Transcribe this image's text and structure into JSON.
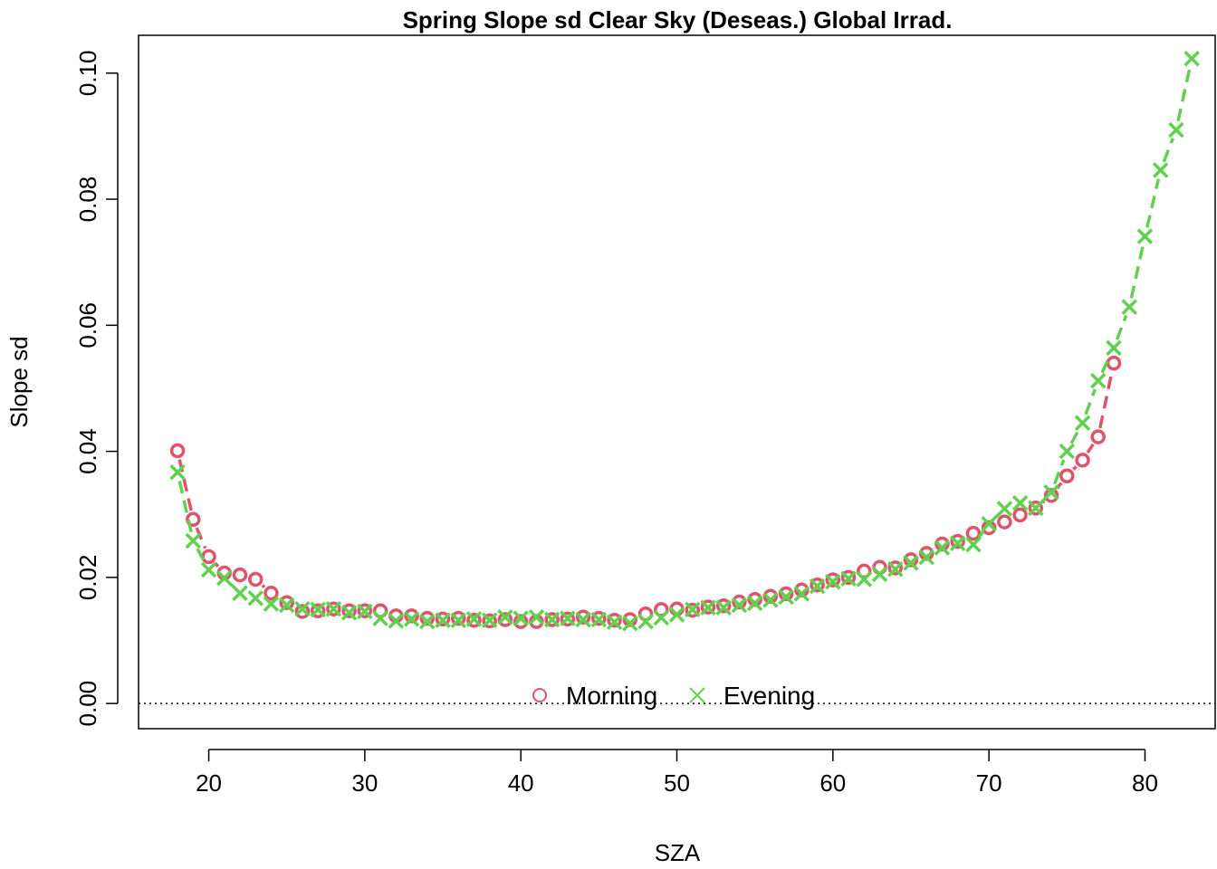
{
  "chart_data": {
    "type": "line",
    "title": "Spring Slope sd Clear Sky (Deseas.) Global Irrad.",
    "xlabel": "SZA",
    "ylabel": "Slope sd",
    "xlim": [
      15.5,
      84.5
    ],
    "ylim": [
      -0.004,
      0.106
    ],
    "xticks": [
      20,
      30,
      40,
      50,
      60,
      70,
      80
    ],
    "xtick_labels": [
      "20",
      "30",
      "40",
      "50",
      "60",
      "70",
      "80"
    ],
    "yticks": [
      0.0,
      0.02,
      0.04,
      0.06,
      0.08,
      0.1
    ],
    "ytick_labels": [
      "0.00",
      "0.02",
      "0.04",
      "0.06",
      "0.08",
      "0.10"
    ],
    "reference_line": {
      "y": 0,
      "style": "dotted"
    },
    "legend_position": "bottom-center",
    "series": [
      {
        "name": "Morning",
        "marker": "circle",
        "line": "dashed",
        "color": "#DF536B",
        "x": [
          18,
          19,
          20,
          21,
          22,
          23,
          24,
          25,
          26,
          27,
          28,
          29,
          30,
          31,
          32,
          33,
          34,
          35,
          36,
          37,
          38,
          39,
          40,
          41,
          42,
          43,
          44,
          45,
          46,
          47,
          48,
          49,
          50,
          51,
          52,
          53,
          54,
          55,
          56,
          57,
          58,
          59,
          60,
          61,
          62,
          63,
          64,
          65,
          66,
          67,
          68,
          69,
          70,
          71,
          72,
          73,
          74,
          75,
          76,
          77,
          78
        ],
        "y": [
          0.0401,
          0.0292,
          0.0233,
          0.0207,
          0.0204,
          0.0197,
          0.0175,
          0.016,
          0.0146,
          0.0147,
          0.015,
          0.0147,
          0.0147,
          0.0147,
          0.0139,
          0.0139,
          0.0135,
          0.0134,
          0.0135,
          0.0132,
          0.0131,
          0.0133,
          0.013,
          0.013,
          0.0133,
          0.0134,
          0.0137,
          0.0135,
          0.0132,
          0.0133,
          0.0142,
          0.0149,
          0.015,
          0.0148,
          0.0153,
          0.0155,
          0.0161,
          0.0165,
          0.017,
          0.0174,
          0.018,
          0.0188,
          0.0196,
          0.02,
          0.021,
          0.0216,
          0.0215,
          0.0228,
          0.0238,
          0.0253,
          0.0257,
          0.027,
          0.0279,
          0.0288,
          0.0299,
          0.031,
          0.033,
          0.0361,
          0.0386,
          0.0423,
          0.054
        ]
      },
      {
        "name": "Evening",
        "marker": "x",
        "line": "dashed",
        "color": "#61D04F",
        "x": [
          18,
          19,
          20,
          21,
          22,
          23,
          24,
          25,
          26,
          27,
          28,
          29,
          30,
          31,
          32,
          33,
          34,
          35,
          36,
          37,
          38,
          39,
          40,
          41,
          42,
          43,
          44,
          45,
          46,
          47,
          48,
          49,
          50,
          51,
          52,
          53,
          54,
          55,
          56,
          57,
          58,
          59,
          60,
          61,
          62,
          63,
          64,
          65,
          66,
          67,
          68,
          69,
          70,
          71,
          72,
          73,
          74,
          75,
          76,
          77,
          78,
          79,
          80,
          81,
          82,
          83
        ],
        "y": [
          0.0367,
          0.0258,
          0.0212,
          0.0199,
          0.0175,
          0.0167,
          0.0158,
          0.0156,
          0.015,
          0.0149,
          0.015,
          0.0144,
          0.0146,
          0.0135,
          0.0131,
          0.0134,
          0.013,
          0.0132,
          0.0132,
          0.0134,
          0.0132,
          0.0137,
          0.0135,
          0.0137,
          0.0133,
          0.0135,
          0.0133,
          0.0133,
          0.0129,
          0.0127,
          0.013,
          0.0136,
          0.0141,
          0.0149,
          0.0152,
          0.0152,
          0.0156,
          0.0159,
          0.0164,
          0.0169,
          0.0174,
          0.0186,
          0.0193,
          0.0198,
          0.0197,
          0.0205,
          0.0213,
          0.0223,
          0.0232,
          0.0247,
          0.0254,
          0.0252,
          0.0285,
          0.0309,
          0.0318,
          0.031,
          0.0335,
          0.04,
          0.0445,
          0.0512,
          0.0564,
          0.0629,
          0.0741,
          0.0846,
          0.091,
          0.1023
        ]
      }
    ]
  }
}
